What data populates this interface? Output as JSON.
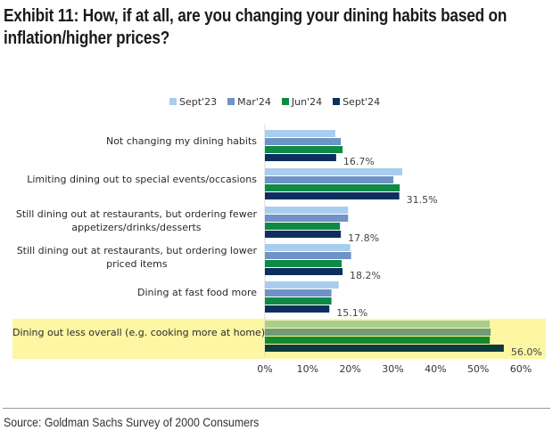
{
  "chart_data": {
    "type": "bar",
    "orientation": "horizontal",
    "title": "Exhibit 11: How, if at all, are you changing your dining habits based on inflation/higher prices?",
    "categories": [
      "Not changing my dining habits",
      "Limiting dining out to special events/occasions",
      "Still dining out at restaurants, but ordering fewer appetizers/drinks/desserts",
      "Still dining out at restaurants, but ordering lower priced items",
      "Dining at fast food more",
      "Dining out less overall (e.g. cooking more at home)"
    ],
    "category_lines": [
      [
        "Not changing my dining habits"
      ],
      [
        "Limiting dining out to special events/occasions"
      ],
      [
        "Still dining out at restaurants, but ordering fewer",
        "appetizers/drinks/desserts"
      ],
      [
        "Still dining out at restaurants, but ordering lower",
        "priced items"
      ],
      [
        "Dining at fast food more"
      ],
      [
        "Dining out less overall (e.g. cooking more at home)"
      ]
    ],
    "series": [
      {
        "name": "Sept'23",
        "color": "#a9cdee",
        "values": [
          16.5,
          32.2,
          19.5,
          20.0,
          17.3,
          52.7
        ]
      },
      {
        "name": "Mar'24",
        "color": "#6e93c6",
        "values": [
          17.8,
          30.1,
          19.5,
          20.2,
          15.6,
          52.9
        ]
      },
      {
        "name": "Jun'24",
        "color": "#0f8a45",
        "values": [
          18.2,
          31.6,
          17.6,
          18.0,
          15.6,
          52.7
        ]
      },
      {
        "name": "Sept'24",
        "color": "#0d2f5e",
        "values": [
          16.7,
          31.5,
          17.8,
          18.2,
          15.1,
          56.0
        ]
      }
    ],
    "highlight_series_colors": [
      "#a8cf8e",
      "#6f9b76",
      "#128a2c",
      "#0b3a3a"
    ],
    "data_labels": [
      "16.7%",
      "31.5%",
      "17.8%",
      "18.2%",
      "15.1%",
      "56.0%"
    ],
    "highlighted_category": "Dining out less overall (e.g. cooking more at home)",
    "highlight_color": "#fdf6a3",
    "xlabel": "",
    "ylabel": "",
    "xlim": [
      0,
      60
    ],
    "xticks": [
      0,
      10,
      20,
      30,
      40,
      50,
      60
    ],
    "xtick_labels": [
      "0%",
      "10%",
      "20%",
      "30%",
      "40%",
      "50%",
      "60%"
    ],
    "grid": false,
    "legend_position": "top"
  },
  "source": "Source: Goldman Sachs Survey of 2000 Consumers"
}
